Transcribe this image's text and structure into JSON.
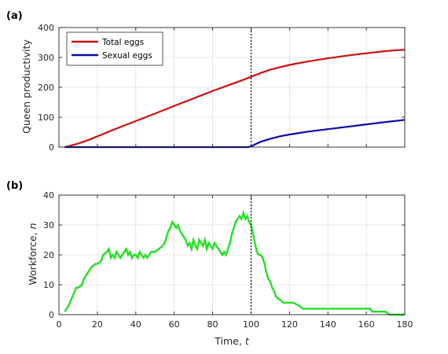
{
  "chart_data": [
    {
      "type": "line",
      "panel_label": "(a)",
      "xlabel": "",
      "ylabel": "Queen productivity",
      "xlim": [
        0,
        180
      ],
      "ylim": [
        0,
        400
      ],
      "xticks": [
        0,
        20,
        40,
        60,
        80,
        100,
        120,
        140,
        160,
        180
      ],
      "yticks": [
        0,
        100,
        200,
        300,
        400
      ],
      "show_xticklabels": false,
      "grid": true,
      "legend": "top-left",
      "vline": 100,
      "series": [
        {
          "name": "Total eggs",
          "color": "#cc1111",
          "x": [
            3,
            5,
            10,
            15,
            20,
            30,
            40,
            50,
            60,
            70,
            80,
            90,
            95,
            100,
            105,
            110,
            120,
            130,
            140,
            150,
            160,
            170,
            180
          ],
          "y": [
            0,
            3,
            12,
            23,
            36,
            62,
            87,
            112,
            138,
            163,
            188,
            211,
            223,
            235,
            248,
            259,
            275,
            287,
            297,
            306,
            314,
            321,
            326
          ]
        },
        {
          "name": "Sexual eggs",
          "color": "#0a0aa8",
          "x": [
            3,
            20,
            40,
            60,
            80,
            98,
            100,
            102,
            105,
            110,
            115,
            120,
            130,
            140,
            150,
            160,
            170,
            180
          ],
          "y": [
            0,
            0,
            0,
            0,
            0,
            0,
            2,
            9,
            18,
            28,
            36,
            42,
            52,
            60,
            68,
            76,
            84,
            91
          ]
        }
      ]
    },
    {
      "type": "line",
      "panel_label": "(b)",
      "xlabel": "Time,",
      "xlabel_var": "t",
      "ylabel": "Workforce,",
      "ylabel_var": "n",
      "xlim": [
        0,
        180
      ],
      "ylim": [
        0,
        40
      ],
      "xticks": [
        0,
        20,
        40,
        60,
        80,
        100,
        120,
        140,
        160,
        180
      ],
      "yticks": [
        0,
        10,
        20,
        30,
        40
      ],
      "grid": true,
      "vline": 100,
      "series": [
        {
          "color": "#22e022",
          "x": [
            3,
            5,
            7,
            9,
            10,
            12,
            13,
            15,
            17,
            19,
            20,
            22,
            23,
            25,
            26,
            27,
            28,
            29,
            30,
            31,
            32,
            33,
            34,
            35,
            36,
            37,
            38,
            39,
            40,
            41,
            42,
            43,
            44,
            45,
            46,
            47,
            48,
            50,
            52,
            54,
            55,
            56,
            57,
            58,
            59,
            60,
            61,
            62,
            63,
            64,
            65,
            66,
            67,
            68,
            69,
            70,
            71,
            72,
            73,
            74,
            75,
            76,
            77,
            78,
            79,
            80,
            81,
            82,
            83,
            84,
            85,
            86,
            87,
            88,
            89,
            90,
            91,
            92,
            93,
            94,
            95,
            96,
            97,
            98,
            99,
            100,
            101,
            102,
            103,
            104,
            105,
            106,
            107,
            108,
            109,
            110,
            111,
            112,
            113,
            115,
            117,
            120,
            122,
            125,
            127,
            130,
            135,
            140,
            145,
            150,
            155,
            160,
            162,
            163,
            165,
            170,
            172,
            175,
            178,
            180
          ],
          "y": [
            1,
            3,
            6,
            9,
            9,
            10,
            12,
            14,
            16,
            17,
            17,
            18,
            20,
            21,
            22,
            19,
            20,
            19,
            21,
            20,
            19,
            20,
            21,
            22,
            20,
            21,
            19,
            20,
            20,
            19,
            21,
            20,
            19,
            20,
            19,
            20,
            21,
            21,
            22,
            23,
            24,
            26,
            28,
            29,
            31,
            30,
            29,
            30,
            28,
            27,
            26,
            25,
            23,
            24,
            22,
            25,
            23,
            22,
            25,
            24,
            23,
            25,
            22,
            24,
            23,
            22,
            24,
            23,
            22,
            21,
            20,
            21,
            20,
            22,
            24,
            27,
            29,
            31,
            32,
            33,
            32,
            34,
            32,
            33,
            31,
            30,
            27,
            24,
            21,
            20,
            20,
            19,
            17,
            14,
            12,
            11,
            9,
            8,
            6,
            5,
            4,
            4,
            4,
            3,
            2,
            2,
            2,
            2,
            2,
            2,
            2,
            2,
            2,
            1,
            1,
            1,
            0,
            0,
            0,
            0
          ]
        }
      ]
    }
  ]
}
